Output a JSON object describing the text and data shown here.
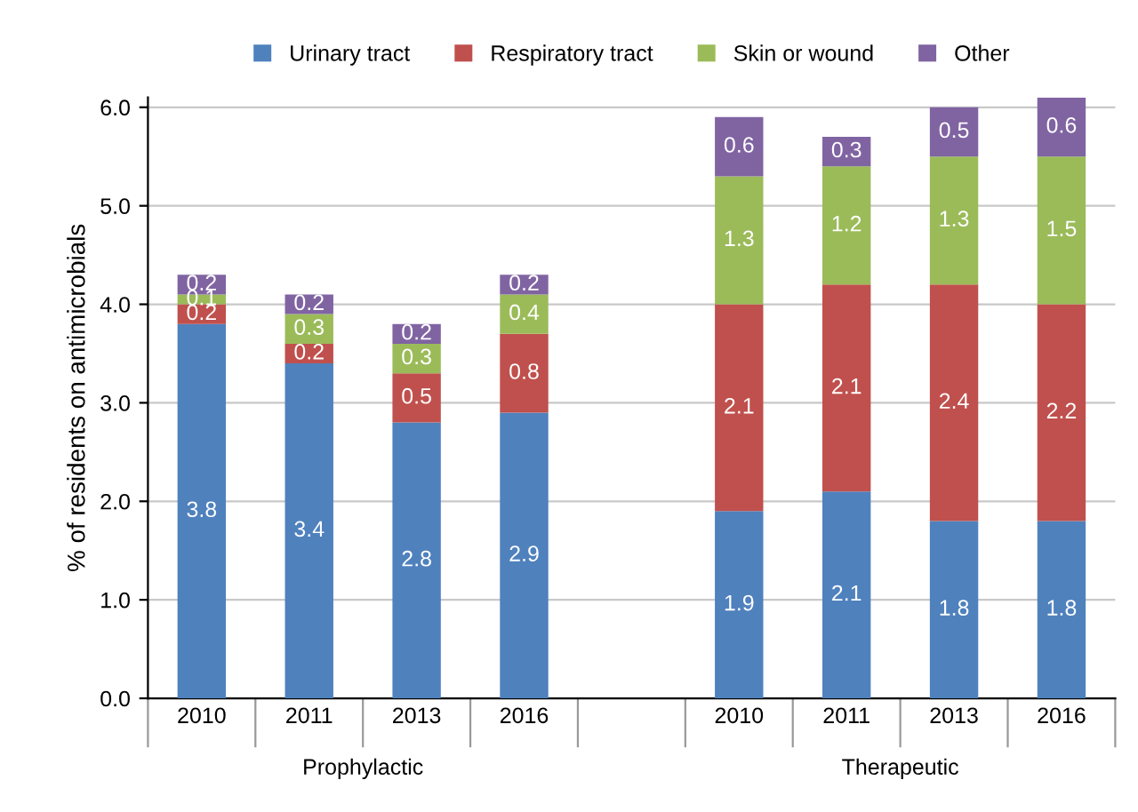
{
  "chart_data": {
    "type": "bar",
    "stacked": true,
    "ylabel": "% of residents on antimicrobials",
    "categories": [
      "2010",
      "2011",
      "2013",
      "2016",
      null,
      "2010",
      "2011",
      "2013",
      "2016"
    ],
    "series": [
      {
        "name": "Urinary tract",
        "color": "#4f81bd",
        "values": [
          3.8,
          3.4,
          2.8,
          2.9,
          null,
          1.9,
          2.1,
          1.8,
          1.8
        ]
      },
      {
        "name": "Respiratory tract",
        "color": "#c0504d",
        "values": [
          0.2,
          0.2,
          0.5,
          0.8,
          null,
          2.1,
          2.1,
          2.4,
          2.2
        ]
      },
      {
        "name": "Skin or wound",
        "color": "#9bbb59",
        "values": [
          0.1,
          0.3,
          0.3,
          0.4,
          null,
          1.3,
          1.2,
          1.3,
          1.5
        ]
      },
      {
        "name": "Other",
        "color": "#8064a2",
        "values": [
          0.2,
          0.2,
          0.2,
          0.2,
          null,
          0.6,
          0.3,
          0.5,
          0.6
        ]
      }
    ],
    "ylim": [
      0,
      6.1
    ],
    "yticks": [
      {
        "value": 0,
        "label": "0.0"
      },
      {
        "value": 1,
        "label": "1.0"
      },
      {
        "value": 2,
        "label": "2.0"
      },
      {
        "value": 3,
        "label": "3.0"
      },
      {
        "value": 4,
        "label": "4.0"
      },
      {
        "value": 5,
        "label": "5.0"
      },
      {
        "value": 6,
        "label": "6.0"
      }
    ],
    "grid": "y",
    "legend": "top",
    "data_labels": true,
    "annotations": [
      "Prophylactic",
      "Therapeutic"
    ]
  }
}
